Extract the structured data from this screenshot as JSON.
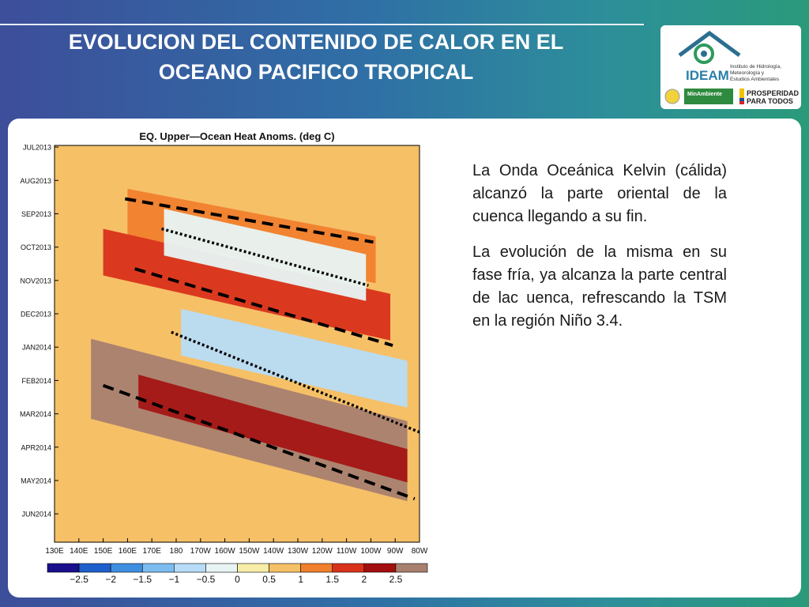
{
  "slide": {
    "title_line1": "EVOLUCION DEL CONTENIDO DE CALOR EN EL",
    "title_line2": "OCEANO PACIFICO TROPICAL",
    "paragraph1": "La Onda Oceánica Kelvin (cálida) alcanzó la parte oriental de la cuenca llegando a su fin.",
    "paragraph2": "La evolución de la misma en su fase fría, ya alcanza la parte central de lac uenca, refrescando la TSM en la región Niño 3.4."
  },
  "logo": {
    "name": "IDEAM",
    "subtitle": [
      "Instituto de Hidrología,",
      "Meteorología y",
      "Estudios Ambientales"
    ],
    "ministry": "MinAmbiente",
    "slogan_line1": "PROSPERIDAD",
    "slogan_line2": "PARA TODOS"
  },
  "chart_data": {
    "type": "heatmap",
    "title": "EQ. Upper—Ocean Heat Anoms. (deg C)",
    "x_ticks": [
      "130E",
      "140E",
      "150E",
      "160E",
      "170E",
      "180",
      "170W",
      "160W",
      "150W",
      "140W",
      "130W",
      "120W",
      "110W",
      "100W",
      "90W",
      "80W"
    ],
    "y_ticks": [
      "JUL2013",
      "AUG2013",
      "SEP2013",
      "OCT2013",
      "NOV2013",
      "DEC2013",
      "JAN2014",
      "FEB2014",
      "MAR2014",
      "APR2014",
      "MAY2014",
      "JUN2014"
    ],
    "colorbar": {
      "labels": [
        "−2.5",
        "−2",
        "−1.5",
        "−1",
        "−0.5",
        "0",
        "0.5",
        "1",
        "1.5",
        "2",
        "2.5"
      ],
      "colors": [
        "#1a0f8c",
        "#1f5fcc",
        "#3f8fe0",
        "#7cbcf0",
        "#b7dcf7",
        "#e8f4f4",
        "#f7eda7",
        "#f6c067",
        "#f07f2e",
        "#d9321b",
        "#a30f0f",
        "#a88070"
      ]
    },
    "bands": [
      {
        "name": "warm-kelvin-1",
        "value": 1.0,
        "start_month": 2.0,
        "end_month": 4.2,
        "start_lon": 160,
        "end_lon": 262
      },
      {
        "name": "warm-kelvin-2",
        "value": 1.5,
        "start_month": 3.2,
        "end_month": 6.2,
        "start_lon": 150,
        "end_lon": 268
      },
      {
        "name": "cool-phase-1",
        "value": -0.5,
        "start_month": 2.6,
        "end_month": 4.7,
        "start_lon": 175,
        "end_lon": 258
      },
      {
        "name": "cool-phase-2",
        "value": -1.0,
        "start_month": 5.6,
        "end_month": 8.0,
        "start_lon": 182,
        "end_lon": 275
      },
      {
        "name": "warm-main",
        "value": 2.5,
        "start_month": 7.0,
        "end_month": 10.8,
        "start_lon": 145,
        "end_lon": 275
      }
    ],
    "annotations": [
      {
        "type": "dashed",
        "lon0": 159,
        "month0": 1.6,
        "lon1": 261,
        "month1": 2.9
      },
      {
        "type": "dotted",
        "lon0": 174,
        "month0": 2.5,
        "lon1": 259,
        "month1": 4.2
      },
      {
        "type": "dashed",
        "lon0": 163,
        "month0": 3.7,
        "lon1": 269,
        "month1": 6.0
      },
      {
        "type": "dotted",
        "lon0": 178,
        "month0": 5.6,
        "lon1": 280,
        "month1": 8.6
      },
      {
        "type": "dashed",
        "lon0": 150,
        "month0": 7.2,
        "lon1": 278,
        "month1": 10.6
      }
    ]
  }
}
